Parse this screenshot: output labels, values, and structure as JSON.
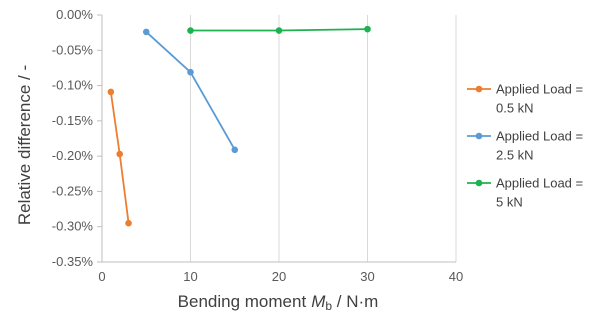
{
  "chart_data": {
    "type": "line",
    "title": "",
    "xlabel": "Bending moment",
    "xlabel_symbol": "M",
    "xlabel_subscript": "b",
    "xlabel_unit": " / N·m",
    "ylabel": "Relative difference / -",
    "xlim": [
      0,
      40
    ],
    "ylim": [
      -0.35,
      0.0
    ],
    "x_ticks": [
      0,
      10,
      20,
      30,
      40
    ],
    "x_tick_labels": [
      "0",
      "10",
      "20",
      "30",
      "40"
    ],
    "y_ticks": [
      0,
      -0.05,
      -0.1,
      -0.15,
      -0.2,
      -0.25,
      -0.3,
      -0.35
    ],
    "y_tick_labels": [
      "0.00%",
      "-0.05%",
      "-0.10%",
      "-0.15%",
      "-0.20%",
      "-0.25%",
      "-0.30%",
      "-0.35%"
    ],
    "grid": "vertical",
    "legend_position": "right",
    "series": [
      {
        "name": "Applied Load = 0.5 kN",
        "legend_lines": [
          "Applied Load =",
          "0.5 kN"
        ],
        "color": "#ED7D31",
        "x": [
          1,
          2,
          3
        ],
        "y": [
          -0.109,
          -0.197,
          -0.295
        ]
      },
      {
        "name": "Applied Load = 2.5 kN",
        "legend_lines": [
          "Applied Load =",
          "2.5 kN"
        ],
        "color": "#5B9BD5",
        "x": [
          5,
          10,
          15
        ],
        "y": [
          -0.024,
          -0.081,
          -0.191
        ]
      },
      {
        "name": "Applied Load = 5 kN",
        "legend_lines": [
          "Applied Load =",
          "5 kN"
        ],
        "color": "#1DB24F",
        "x": [
          10,
          20,
          30
        ],
        "y": [
          -0.022,
          -0.022,
          -0.02
        ]
      }
    ]
  }
}
